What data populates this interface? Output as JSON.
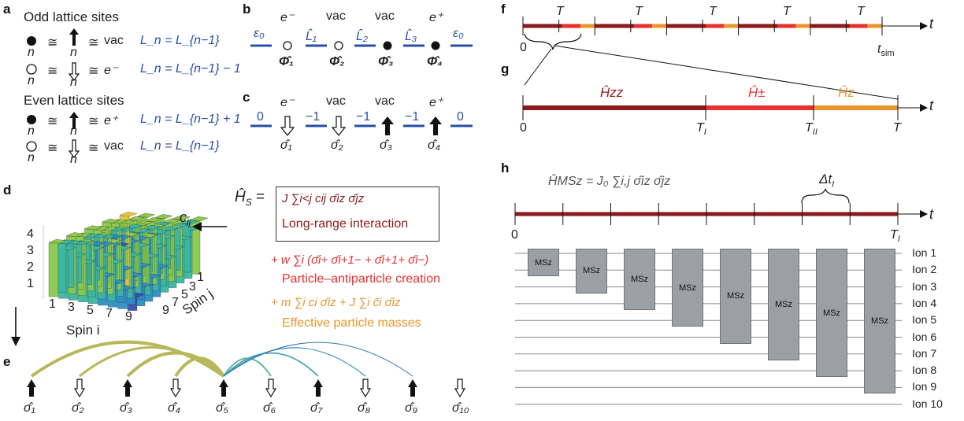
{
  "panels": {
    "a": "a",
    "b": "b",
    "c": "c",
    "d": "d",
    "e": "e",
    "f": "f",
    "g": "g",
    "h": "h"
  },
  "a": {
    "odd_title": "Odd lattice sites",
    "even_title": "Even lattice sites",
    "rows": [
      {
        "n": "n",
        "arrow_n": "n",
        "eq": "≅",
        "state": "vac",
        "rule": "L_n = L_{n−1}"
      },
      {
        "n": "n",
        "arrow_n": "n",
        "eq": "≅",
        "state": "e⁻",
        "rule": "L_n = L_{n−1} − 1"
      },
      {
        "n": "n",
        "arrow_n": "n",
        "eq": "≅",
        "state": "e⁺",
        "rule": "L_n = L_{n−1} + 1"
      },
      {
        "n": "n",
        "arrow_n": "n",
        "eq": "≅",
        "state": "vac",
        "rule": "L_n = L_{n−1}"
      }
    ]
  },
  "b": {
    "particles": [
      "e⁻",
      "vac",
      "vac",
      "e⁺"
    ],
    "links": [
      "ε₀",
      "L̂₁",
      "L̂₂",
      "L̂₃",
      "ε₀"
    ],
    "sites": [
      "Φ̂₁",
      "Φ̂₂",
      "Φ̂₃",
      "Φ̂₄"
    ]
  },
  "c": {
    "particles": [
      "e⁻",
      "vac",
      "vac",
      "e⁺"
    ],
    "links": [
      "0",
      "−1",
      "−1",
      "−1",
      "0"
    ],
    "sites": [
      "σ̂₁",
      "σ̂₂",
      "σ̂₃",
      "σ̂₄"
    ]
  },
  "d": {
    "zaxis": [
      "1",
      "2",
      "3",
      "4"
    ],
    "xticks": [
      "1",
      "3",
      "5",
      "7",
      "9"
    ],
    "yticks": [
      "1",
      "3",
      "5",
      "7",
      "9"
    ],
    "xlabel": "Spin i",
    "ylabel": "Spin j",
    "cij": "c",
    "cij_sub": "ij",
    "hs_label": "Ĥ",
    "hs_sub": "S",
    "hs_eq": "=",
    "term1": "J ∑i<j cij σ̂iz σ̂jz",
    "term1_desc": "Long-range interaction",
    "term2": "+ w ∑i (σ̂i+ σ̂i+1− + σ̂i+1+ σ̂i−)",
    "term2_desc": "Particle–antiparticle creation",
    "term3": "+ m ∑i ci σ̂iz + J ∑i c̃i σ̂iz",
    "term3_desc": "Effective particle masses"
  },
  "e": {
    "sites": [
      "σ̂₁",
      "σ̂₂",
      "σ̂₃",
      "σ̂₄",
      "σ̂₅",
      "σ̂₆",
      "σ̂₇",
      "σ̂₈",
      "σ̂₉",
      "σ̂₁₀"
    ],
    "spins": [
      "up",
      "down",
      "up",
      "down",
      "up",
      "down",
      "up",
      "down",
      "up",
      "down"
    ]
  },
  "f": {
    "period_labels": [
      "T",
      "T",
      "T",
      "T",
      "T"
    ],
    "start": "0",
    "end_label": "t",
    "end_sub": "sim",
    "axis": "t"
  },
  "g": {
    "h_zz": "Ĥzz",
    "h_pm": "Ĥ±",
    "h_z": "Ĥz",
    "ticks": [
      "0",
      "T",
      "T",
      "T"
    ],
    "tick_subs": [
      "",
      "I",
      "II",
      ""
    ],
    "axis": "t"
  },
  "h": {
    "hamiltonian": "ĤMSz = J₀ ∑i,j σ̂iz σ̂jz",
    "delta": "Δt",
    "delta_sub": "I",
    "start": "0",
    "end": "T",
    "end_sub": "I",
    "axis": "t",
    "gate_label": "MSz",
    "ions": [
      "Ion 1",
      "Ion 2",
      "Ion 3",
      "Ion 4",
      "Ion 5",
      "Ion 6",
      "Ion 7",
      "Ion 8",
      "Ion 9",
      "Ion 10"
    ]
  },
  "colors": {
    "blue": "#2850a8",
    "darkred": "#8b1a1a",
    "red": "#e8302f",
    "orange": "#e8952a",
    "gate": "#9aa0a6"
  }
}
